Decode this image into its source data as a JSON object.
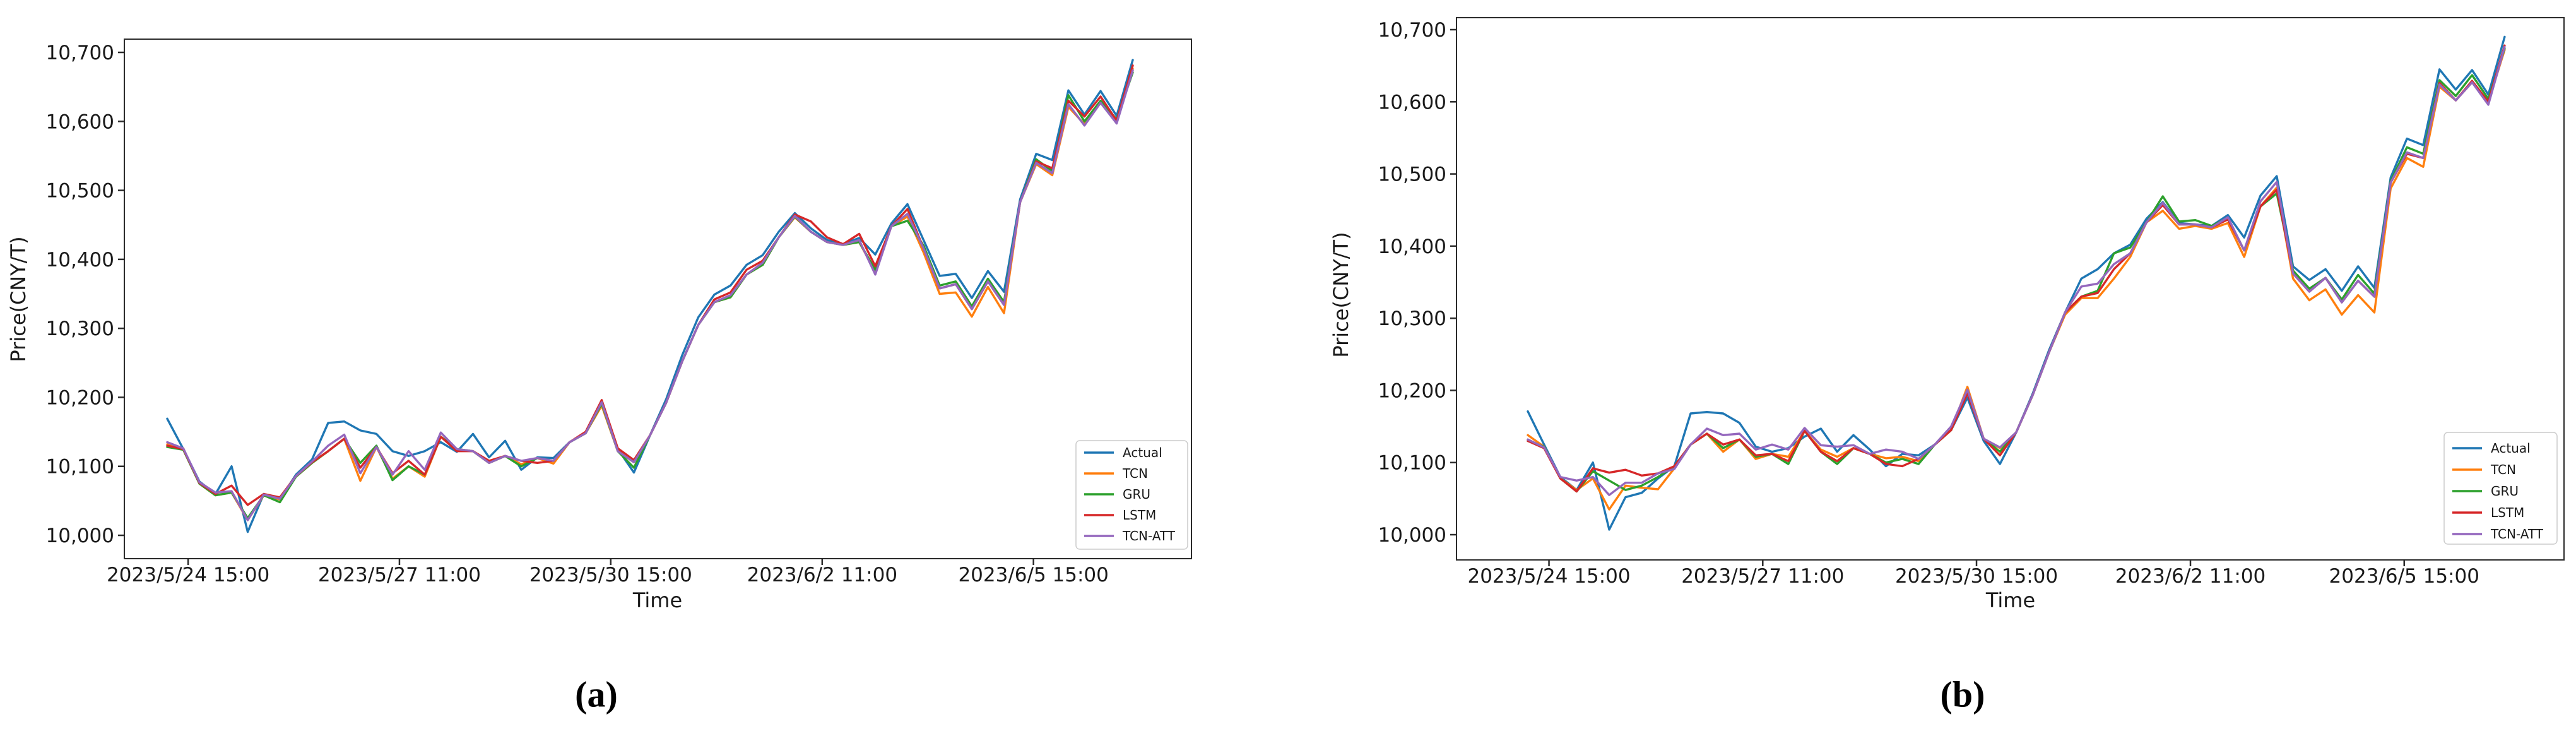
{
  "figure": {
    "captions": {
      "a": "(a)",
      "b": "(b)"
    },
    "xlabel": "Time",
    "ylabel": "Price(CNY/T)",
    "legend_entries": [
      "Actual",
      "TCN",
      "GRU",
      "LSTM",
      "TCN-ATT"
    ],
    "series_colors": {
      "Actual": "#1f77b4",
      "TCN": "#ff7f0e",
      "GRU": "#2ca02c",
      "LSTM": "#d62728",
      "TCN-ATT": "#9467bd"
    },
    "axis_color": "#2b2b2b"
  },
  "chart_data": [
    {
      "type": "line",
      "panel": "a",
      "title": "",
      "xlabel": "Time",
      "ylabel": "Price(CNY/T)",
      "grid": false,
      "legend_position": "lower right",
      "ylim": [
        9958,
        10719
      ],
      "yticks": [
        10000,
        10100,
        10200,
        10300,
        10400,
        10500,
        10600,
        10700
      ],
      "x_tick_labels": [
        "2023/5/24 15:00",
        "2023/5/27 11:00",
        "2023/5/30 15:00",
        "2023/6/2 11:00",
        "2023/6/5 15:00"
      ],
      "series": [
        {
          "name": "Actual",
          "color": "#1f77b4",
          "values": [
            10169,
            10125,
            10078,
            10060,
            10100,
            10005,
            10060,
            10052,
            10088,
            10110,
            10163,
            10165,
            10152,
            10147,
            10122,
            10115,
            10122,
            10135,
            10121,
            10147,
            10113,
            10137,
            10095,
            10113,
            10112,
            10135,
            10148,
            10191,
            10125,
            10091,
            10145,
            10197,
            10261,
            10316,
            10349,
            10362,
            10392,
            10406,
            10440,
            10467,
            10445,
            10428,
            10422,
            10431,
            10407,
            10452,
            10480,
            10428,
            10376,
            10379,
            10344,
            10383,
            10353,
            10487,
            10553,
            10544,
            10645,
            10610,
            10644,
            10608,
            10689
          ]
        },
        {
          "name": "TCN",
          "color": "#ff7f0e",
          "values": [
            10132,
            10126,
            10075,
            10058,
            10062,
            10022,
            10058,
            10052,
            10085,
            10105,
            10122,
            10140,
            10079,
            10128,
            10082,
            10100,
            10085,
            10143,
            10125,
            10122,
            10105,
            10115,
            10103,
            10112,
            10104,
            10135,
            10148,
            10188,
            10122,
            10106,
            10145,
            10192,
            10252,
            10305,
            10338,
            10345,
            10378,
            10392,
            10432,
            10461,
            10440,
            10425,
            10421,
            10425,
            10382,
            10448,
            10462,
            10410,
            10350,
            10352,
            10317,
            10360,
            10322,
            10483,
            10538,
            10522,
            10621,
            10596,
            10627,
            10601,
            10676
          ]
        },
        {
          "name": "GRU",
          "color": "#2ca02c",
          "values": [
            10128,
            10124,
            10075,
            10058,
            10062,
            10025,
            10058,
            10048,
            10085,
            10105,
            10122,
            10140,
            10105,
            10130,
            10080,
            10100,
            10088,
            10143,
            10125,
            10122,
            10105,
            10115,
            10100,
            10112,
            10108,
            10135,
            10148,
            10191,
            10122,
            10098,
            10145,
            10192,
            10252,
            10305,
            10338,
            10345,
            10378,
            10392,
            10432,
            10462,
            10440,
            10425,
            10421,
            10425,
            10385,
            10448,
            10456,
            10420,
            10362,
            10368,
            10332,
            10372,
            10338,
            10483,
            10545,
            10528,
            10638,
            10600,
            10630,
            10603,
            10671
          ]
        },
        {
          "name": "LSTM",
          "color": "#d62728",
          "values": [
            10130,
            10125,
            10076,
            10060,
            10072,
            10044,
            10060,
            10055,
            10086,
            10106,
            10122,
            10140,
            10098,
            10128,
            10090,
            10108,
            10088,
            10143,
            10122,
            10122,
            10108,
            10115,
            10108,
            10105,
            10108,
            10135,
            10150,
            10196,
            10126,
            10109,
            10145,
            10192,
            10252,
            10305,
            10342,
            10352,
            10385,
            10398,
            10432,
            10465,
            10455,
            10432,
            10422,
            10437,
            10390,
            10448,
            10473,
            10416,
            10358,
            10364,
            10328,
            10368,
            10334,
            10483,
            10542,
            10532,
            10630,
            10607,
            10636,
            10601,
            10681
          ]
        },
        {
          "name": "TCN-ATT",
          "color": "#9467bd",
          "values": [
            10135,
            10126,
            10077,
            10062,
            10064,
            10022,
            10059,
            10053,
            10086,
            10107,
            10130,
            10146,
            10090,
            10128,
            10088,
            10122,
            10095,
            10149,
            10125,
            10122,
            10105,
            10115,
            10108,
            10112,
            10108,
            10135,
            10148,
            10193,
            10122,
            10106,
            10145,
            10192,
            10252,
            10305,
            10338,
            10348,
            10378,
            10395,
            10432,
            10463,
            10440,
            10425,
            10421,
            10428,
            10378,
            10448,
            10466,
            10416,
            10358,
            10364,
            10328,
            10368,
            10334,
            10483,
            10540,
            10525,
            10625,
            10594,
            10627,
            10597,
            10674
          ]
        }
      ]
    },
    {
      "type": "line",
      "panel": "b",
      "title": "",
      "xlabel": "Time",
      "ylabel": "Price(CNY/T)",
      "grid": false,
      "legend_position": "lower right",
      "ylim": [
        9958,
        10735
      ],
      "yticks": [
        10000,
        10100,
        10200,
        10300,
        10400,
        10500,
        10600,
        10700
      ],
      "x_tick_labels": [
        "2023/5/24 15:00",
        "2023/5/27 11:00",
        "2023/5/30 15:00",
        "2023/6/2 11:00",
        "2023/6/5 15:00"
      ],
      "series": [
        {
          "name": "Actual",
          "color": "#1f77b4",
          "values": [
            10171,
            10125,
            10080,
            10062,
            10100,
            10007,
            10052,
            10058,
            10078,
            10095,
            10168,
            10170,
            10168,
            10155,
            10122,
            10115,
            10120,
            10136,
            10147,
            10115,
            10138,
            10118,
            10095,
            10112,
            10110,
            10125,
            10145,
            10190,
            10130,
            10098,
            10142,
            10195,
            10255,
            10308,
            10355,
            10368,
            10390,
            10402,
            10438,
            10461,
            10432,
            10430,
            10428,
            10443,
            10412,
            10470,
            10497,
            10372,
            10353,
            10368,
            10338,
            10372,
            10342,
            10495,
            10549,
            10540,
            10645,
            10617,
            10644,
            10610,
            10690
          ]
        },
        {
          "name": "TCN",
          "color": "#ff7f0e",
          "values": [
            10138,
            10122,
            10078,
            10062,
            10078,
            10035,
            10068,
            10065,
            10063,
            10092,
            10125,
            10140,
            10115,
            10132,
            10105,
            10112,
            10108,
            10144,
            10118,
            10108,
            10120,
            10112,
            10106,
            10108,
            10102,
            10125,
            10145,
            10205,
            10133,
            10120,
            10142,
            10193,
            10252,
            10305,
            10328,
            10328,
            10355,
            10385,
            10433,
            10449,
            10424,
            10428,
            10424,
            10432,
            10385,
            10455,
            10481,
            10355,
            10325,
            10340,
            10305,
            10332,
            10308,
            10480,
            10522,
            10510,
            10621,
            10602,
            10627,
            10600,
            10672
          ]
        },
        {
          "name": "GRU",
          "color": "#2ca02c",
          "values": [
            10130,
            10122,
            10078,
            10060,
            10088,
            10075,
            10062,
            10068,
            10080,
            10095,
            10125,
            10140,
            10120,
            10132,
            10108,
            10112,
            10098,
            10144,
            10115,
            10098,
            10120,
            10112,
            10100,
            10105,
            10098,
            10125,
            10145,
            10198,
            10133,
            10115,
            10142,
            10193,
            10252,
            10308,
            10330,
            10338,
            10390,
            10398,
            10433,
            10469,
            10434,
            10436,
            10428,
            10439,
            10394,
            10455,
            10473,
            10366,
            10341,
            10356,
            10326,
            10360,
            10334,
            10490,
            10537,
            10528,
            10630,
            10608,
            10637,
            10604,
            10674
          ]
        },
        {
          "name": "LSTM",
          "color": "#d62728",
          "values": [
            10130,
            10120,
            10078,
            10060,
            10092,
            10086,
            10090,
            10082,
            10085,
            10095,
            10125,
            10140,
            10125,
            10132,
            10110,
            10112,
            10102,
            10144,
            10115,
            10102,
            10120,
            10112,
            10098,
            10095,
            10105,
            10125,
            10145,
            10196,
            10133,
            10110,
            10142,
            10193,
            10252,
            10308,
            10330,
            10335,
            10368,
            10390,
            10433,
            10457,
            10430,
            10430,
            10426,
            10437,
            10394,
            10455,
            10478,
            10362,
            10337,
            10356,
            10322,
            10352,
            10330,
            10488,
            10528,
            10522,
            10626,
            10602,
            10629,
            10600,
            10678
          ]
        },
        {
          "name": "TCN-ATT",
          "color": "#9467bd",
          "values": [
            10132,
            10121,
            10080,
            10075,
            10080,
            10055,
            10072,
            10072,
            10085,
            10091,
            10125,
            10147,
            10138,
            10140,
            10118,
            10125,
            10118,
            10148,
            10124,
            10122,
            10124,
            10112,
            10118,
            10115,
            10105,
            10125,
            10150,
            10201,
            10133,
            10121,
            10142,
            10193,
            10252,
            10308,
            10344,
            10348,
            10375,
            10390,
            10433,
            10460,
            10430,
            10430,
            10426,
            10440,
            10394,
            10462,
            10489,
            10362,
            10337,
            10356,
            10322,
            10352,
            10330,
            10488,
            10530,
            10522,
            10624,
            10602,
            10627,
            10596,
            10676
          ]
        }
      ]
    }
  ]
}
